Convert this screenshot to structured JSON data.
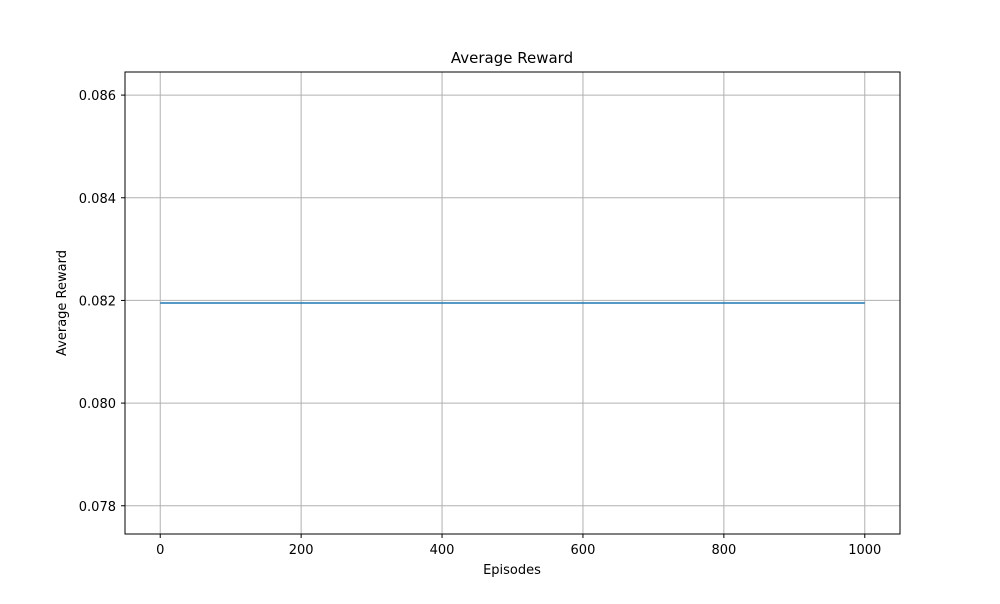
{
  "chart_data": {
    "type": "line",
    "title": "Average Reward",
    "xlabel": "Episodes",
    "ylabel": "Average Reward",
    "xlim": [
      -50,
      1050
    ],
    "ylim": [
      0.07745,
      0.08645
    ],
    "xticks": [
      0,
      200,
      400,
      600,
      800,
      1000
    ],
    "xtick_labels": [
      "0",
      "200",
      "400",
      "600",
      "800",
      "1000"
    ],
    "yticks": [
      0.078,
      0.08,
      0.082,
      0.084,
      0.086
    ],
    "ytick_labels": [
      "0.078",
      "0.080",
      "0.082",
      "0.084",
      "0.086"
    ],
    "grid": true,
    "series": [
      {
        "x": [
          0,
          1000
        ],
        "y": [
          0.08195,
          0.08195
        ],
        "color": "#1f77b4"
      }
    ]
  }
}
